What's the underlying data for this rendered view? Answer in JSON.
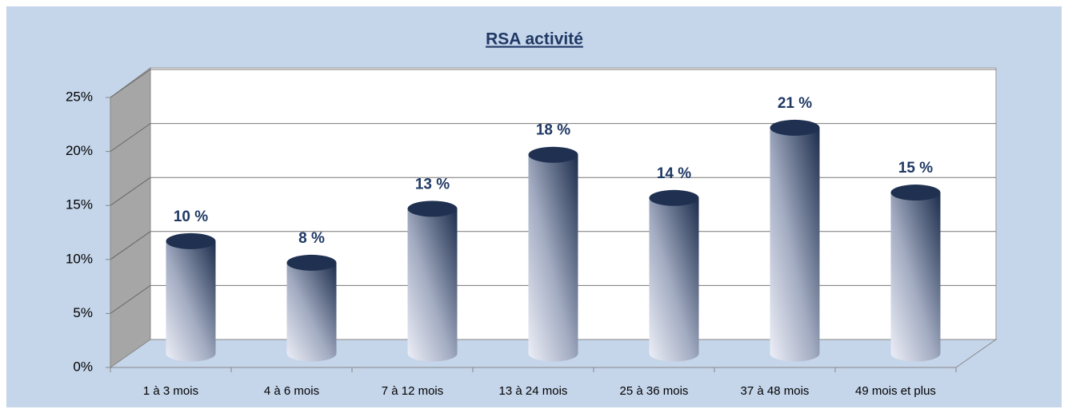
{
  "chart_data": {
    "type": "bar3d",
    "title": "RSA activité",
    "categories": [
      "1 à 3 mois",
      "4 à 6 mois",
      "7 à 12 mois",
      "13 à 24 mois",
      "25 à 36 mois",
      "37 à 48 mois",
      "49 mois et plus"
    ],
    "values": [
      10.4,
      8.4,
      13.4,
      18.4,
      14.4,
      20.9,
      14.9
    ],
    "value_labels": [
      "10 %",
      "8 %",
      "13 %",
      "18 %",
      "14 %",
      "21 %",
      "15 %"
    ],
    "color": "#1f3050",
    "ylim": [
      0,
      25
    ],
    "yticks": [
      {
        "value": 0,
        "label": "0%"
      },
      {
        "value": 5,
        "label": "5%"
      },
      {
        "value": 10,
        "label": "10%"
      },
      {
        "value": 15,
        "label": "15%"
      },
      {
        "value": 20,
        "label": "20%"
      },
      {
        "value": 25,
        "label": "25%"
      }
    ],
    "grid": true
  }
}
